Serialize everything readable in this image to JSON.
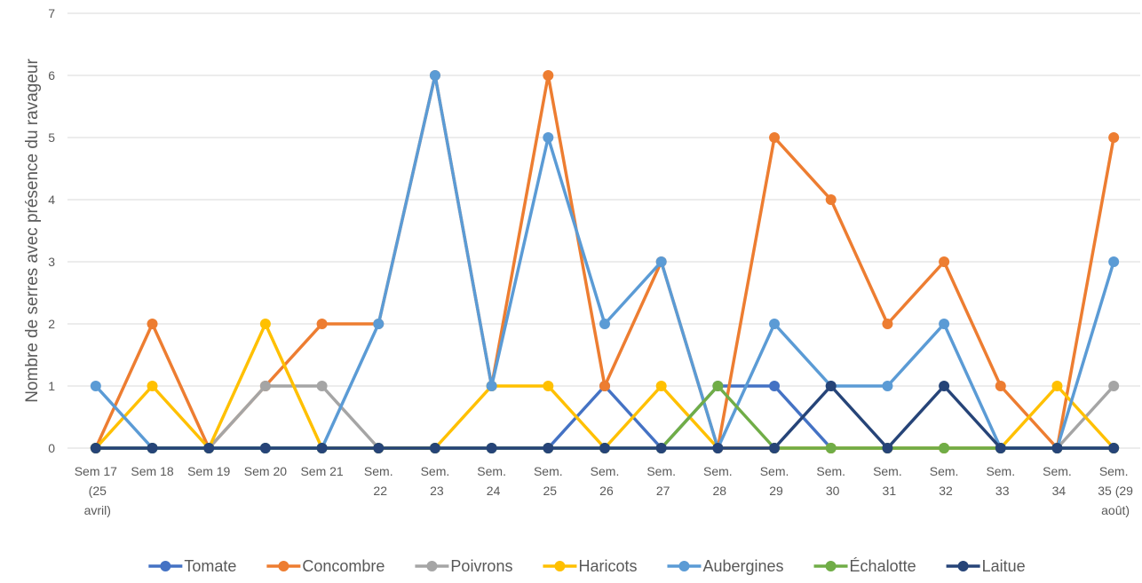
{
  "chart_data": {
    "type": "line",
    "y_label": "Nombre de serres avec présence du ravageur",
    "categories": [
      "Sem 17 (25 avril)",
      "Sem 18",
      "Sem 19",
      "Sem 20",
      "Sem 21",
      "Sem. 22",
      "Sem. 23",
      "Sem. 24",
      "Sem. 25",
      "Sem. 26",
      "Sem. 27",
      "Sem. 28",
      "Sem. 29",
      "Sem. 30",
      "Sem. 31",
      "Sem. 32",
      "Sem. 33",
      "Sem. 34",
      "Sem. 35 (29 août)"
    ],
    "series": [
      {
        "name": "Tomate",
        "color": "#4472c4",
        "values": [
          0,
          0,
          0,
          0,
          0,
          0,
          0,
          0,
          0,
          1,
          0,
          1,
          1,
          0,
          0,
          0,
          0,
          0,
          0
        ]
      },
      {
        "name": "Concombre",
        "color": "#ed7d31",
        "values": [
          0,
          2,
          0,
          1,
          2,
          2,
          6,
          1,
          6,
          1,
          3,
          0,
          5,
          4,
          2,
          3,
          1,
          0,
          5
        ]
      },
      {
        "name": "Poivrons",
        "color": "#a5a5a5",
        "values": [
          0,
          0,
          0,
          1,
          1,
          0,
          0,
          0,
          0,
          0,
          0,
          0,
          0,
          0,
          0,
          0,
          0,
          0,
          1
        ]
      },
      {
        "name": "Haricots",
        "color": "#ffc000",
        "values": [
          0,
          1,
          0,
          2,
          0,
          0,
          0,
          1,
          1,
          0,
          1,
          0,
          0,
          0,
          0,
          0,
          0,
          1,
          0
        ]
      },
      {
        "name": "Aubergines",
        "color": "#5b9bd5",
        "values": [
          1,
          0,
          0,
          0,
          0,
          2,
          6,
          1,
          5,
          2,
          3,
          0,
          2,
          1,
          1,
          2,
          0,
          0,
          3
        ]
      },
      {
        "name": "Échalotte",
        "color": "#70ad47",
        "values": [
          0,
          0,
          0,
          0,
          0,
          0,
          0,
          0,
          0,
          0,
          0,
          1,
          0,
          0,
          0,
          0,
          0,
          0,
          0
        ]
      },
      {
        "name": "Laitue",
        "color": "#264478",
        "values": [
          0,
          0,
          0,
          0,
          0,
          0,
          0,
          0,
          0,
          0,
          0,
          0,
          0,
          1,
          0,
          1,
          0,
          0,
          0
        ]
      }
    ],
    "ylim": [
      0,
      7
    ],
    "yticks": [
      0,
      1,
      2,
      3,
      4,
      5,
      6,
      7
    ],
    "grid": true,
    "legend": "bottom"
  }
}
